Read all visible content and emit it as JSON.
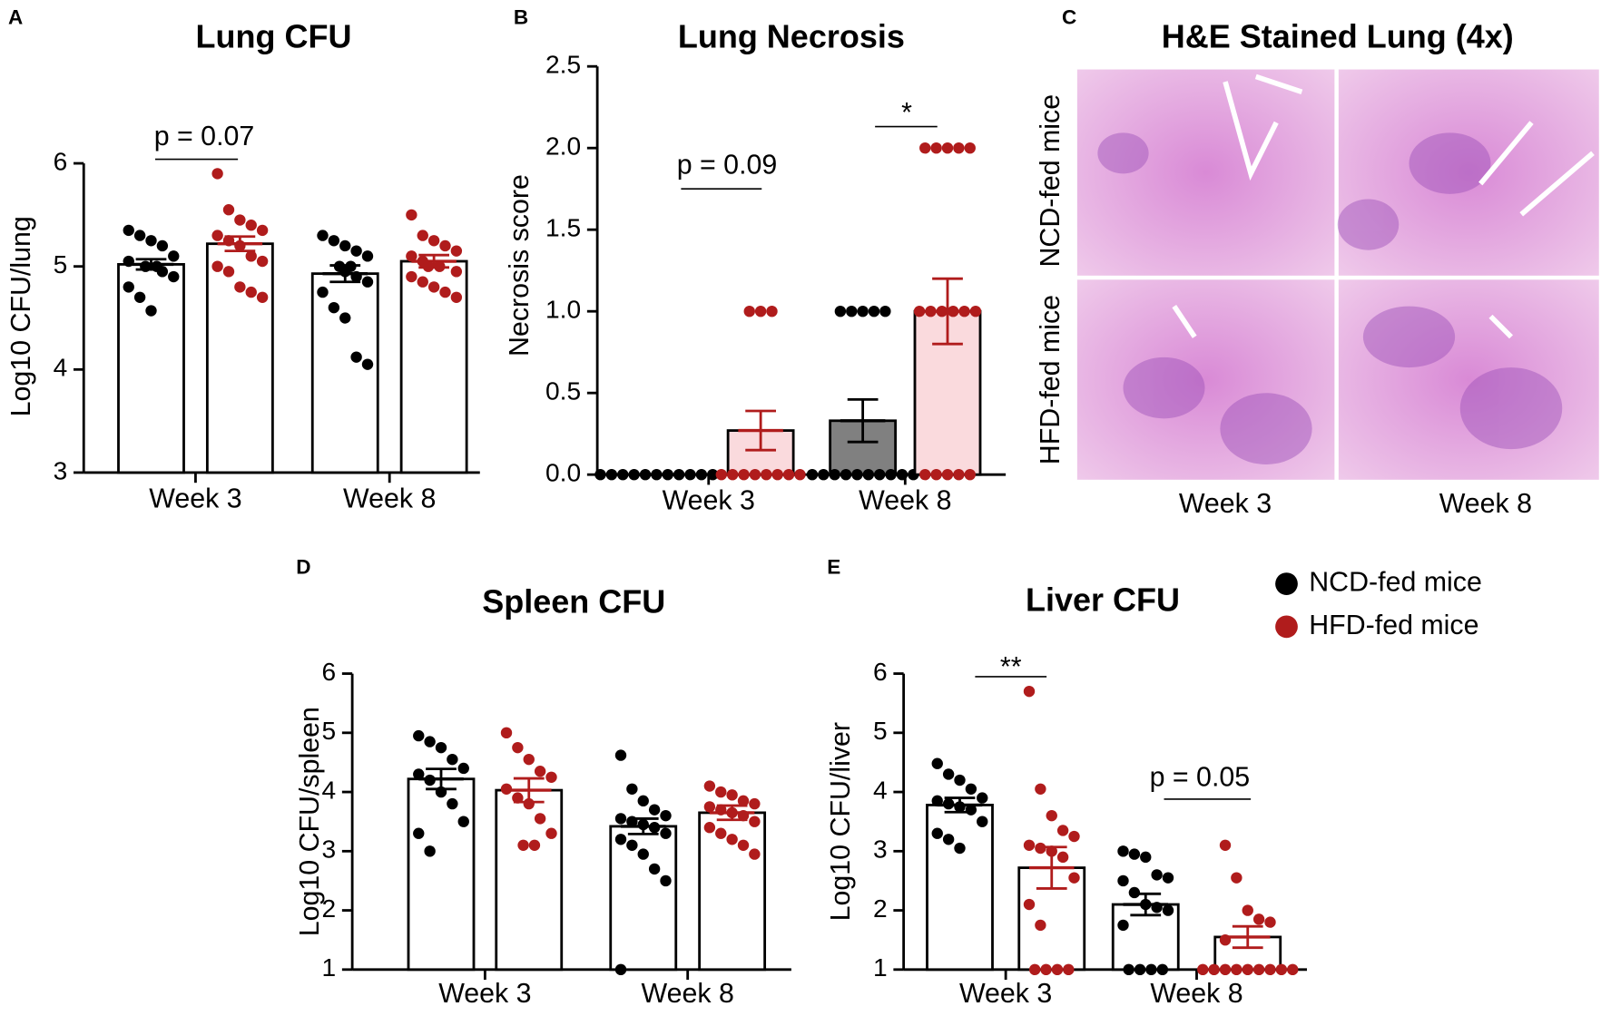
{
  "chart_data": [
    {
      "panel": "A",
      "type": "bar",
      "title": "Lung CFU",
      "y_label": "Log10 CFU/lung",
      "categories": [
        "Week 3",
        "Week 8"
      ],
      "ylim": [
        3,
        6
      ],
      "yticks": [
        3,
        4,
        5,
        6
      ],
      "series": [
        {
          "name": "NCD-fed mice",
          "color": "#000000",
          "bar_fill": "#ffffff",
          "values": [
            5.02,
            4.93
          ],
          "errors": [
            0.05,
            0.08
          ],
          "points": [
            [
              5.35,
              5.3,
              5.25,
              5.2,
              5.1,
              5.05,
              5.0,
              5.0,
              4.95,
              4.9,
              4.8,
              4.7,
              4.57
            ],
            [
              5.3,
              5.25,
              5.2,
              5.15,
              5.1,
              5.0,
              5.0,
              4.95,
              4.9,
              4.85,
              4.75,
              4.6,
              4.5,
              4.12,
              4.05
            ]
          ]
        },
        {
          "name": "HFD-fed mice",
          "color": "#b01c1c",
          "bar_fill": "#ffffff",
          "values": [
            5.22,
            5.05
          ],
          "errors": [
            0.07,
            0.06
          ],
          "points": [
            [
              5.9,
              5.55,
              5.45,
              5.4,
              5.35,
              5.3,
              5.25,
              5.2,
              5.1,
              5.05,
              5.0,
              4.95,
              4.8,
              4.75,
              4.7
            ],
            [
              5.5,
              5.3,
              5.25,
              5.2,
              5.15,
              5.1,
              5.05,
              5.0,
              5.0,
              4.95,
              4.9,
              4.85,
              4.8,
              4.75,
              4.7
            ]
          ]
        }
      ],
      "annotations": [
        "p = 0.07"
      ]
    },
    {
      "panel": "B",
      "type": "bar",
      "title": "Lung Necrosis",
      "y_label": "Necrosis score",
      "categories": [
        "Week 3",
        "Week 8"
      ],
      "ylim": [
        0,
        2.5
      ],
      "yticks": [
        {
          "value": 0,
          "label": "0.0"
        },
        {
          "value": 0.5,
          "label": "0.5"
        },
        {
          "value": 1,
          "label": "1.0"
        },
        {
          "value": 1.5,
          "label": "1.5"
        },
        {
          "value": 2,
          "label": "2.0"
        },
        {
          "value": 2.5,
          "label": "2.5"
        }
      ],
      "series": [
        {
          "name": "NCD-fed mice",
          "color": "#000000",
          "bar_fill": "#808080",
          "values": [
            0,
            0.33
          ],
          "errors": [
            0,
            0.13
          ],
          "points": [
            [
              0,
              0,
              0,
              0,
              0,
              0,
              0,
              0,
              0,
              0,
              0
            ],
            [
              1,
              1,
              1,
              1,
              1,
              0,
              0,
              0,
              0,
              0,
              0,
              0,
              0,
              0,
              0
            ]
          ]
        },
        {
          "name": "HFD-fed mice",
          "color": "#b01c1c",
          "bar_fill": "#fadadd",
          "values": [
            0.27,
            1.0
          ],
          "errors": [
            0.12,
            0.2
          ],
          "points": [
            [
              1,
              1,
              1,
              0,
              0,
              0,
              0,
              0,
              0,
              0,
              0
            ],
            [
              2,
              2,
              2,
              2,
              2,
              1,
              1,
              1,
              1,
              1,
              1,
              0,
              0,
              0,
              0,
              0
            ]
          ]
        }
      ],
      "annotations": [
        "p = 0.09",
        "*"
      ]
    },
    {
      "panel": "D",
      "type": "bar",
      "title": "Spleen CFU",
      "y_label": "Log10 CFU/spleen",
      "categories": [
        "Week 3",
        "Week 8"
      ],
      "ylim": [
        1,
        6
      ],
      "yticks": [
        1,
        2,
        3,
        4,
        5,
        6
      ],
      "series": [
        {
          "name": "NCD-fed mice",
          "color": "#000000",
          "bar_fill": "#ffffff",
          "values": [
            4.22,
            3.42
          ],
          "errors": [
            0.17,
            0.13
          ],
          "points": [
            [
              4.95,
              4.85,
              4.75,
              4.55,
              4.4,
              4.3,
              4.2,
              4.0,
              3.8,
              3.5,
              3.3,
              3.0
            ],
            [
              4.62,
              4.05,
              3.85,
              3.7,
              3.6,
              3.55,
              3.5,
              3.45,
              3.4,
              3.3,
              3.2,
              3.1,
              2.95,
              2.7,
              2.5,
              1.0
            ]
          ]
        },
        {
          "name": "HFD-fed mice",
          "color": "#b01c1c",
          "bar_fill": "#ffffff",
          "values": [
            4.03,
            3.65
          ],
          "errors": [
            0.2,
            0.12
          ],
          "points": [
            [
              5.0,
              4.75,
              4.55,
              4.35,
              4.25,
              4.05,
              3.9,
              3.8,
              3.55,
              3.3,
              3.1,
              3.1
            ],
            [
              4.1,
              4.0,
              3.95,
              3.85,
              3.8,
              3.75,
              3.7,
              3.65,
              3.6,
              3.5,
              3.4,
              3.3,
              3.2,
              3.1,
              2.95
            ]
          ]
        }
      ],
      "annotations": []
    },
    {
      "panel": "E",
      "type": "bar",
      "title": "Liver CFU",
      "y_label": "Log10 CFU/liver",
      "categories": [
        "Week 3",
        "Week 8"
      ],
      "ylim": [
        1,
        6
      ],
      "yticks": [
        1,
        2,
        3,
        4,
        5,
        6
      ],
      "series": [
        {
          "name": "NCD-fed mice",
          "color": "#000000",
          "bar_fill": "#ffffff",
          "values": [
            3.78,
            2.1
          ],
          "errors": [
            0.12,
            0.18
          ],
          "points": [
            [
              4.48,
              4.3,
              4.2,
              4.05,
              3.9,
              3.85,
              3.8,
              3.75,
              3.7,
              3.5,
              3.3,
              3.2,
              3.05
            ],
            [
              3.0,
              2.95,
              2.9,
              2.6,
              2.55,
              2.5,
              2.3,
              2.1,
              2.05,
              2.0,
              1.75,
              1.0,
              1.0,
              1.0,
              1.0
            ]
          ]
        },
        {
          "name": "HFD-fed mice",
          "color": "#b01c1c",
          "bar_fill": "#ffffff",
          "values": [
            2.72,
            1.55
          ],
          "errors": [
            0.35,
            0.18
          ],
          "points": [
            [
              5.7,
              4.05,
              3.6,
              3.35,
              3.25,
              3.1,
              3.05,
              3.0,
              2.9,
              2.55,
              2.1,
              1.75,
              1.0,
              1.0,
              1.0,
              1.0
            ],
            [
              3.1,
              2.55,
              2.0,
              1.85,
              1.8,
              1.5,
              1.0,
              1.0,
              1.0,
              1.0,
              1.0,
              1.0,
              1.0,
              1.0,
              1.0
            ]
          ]
        }
      ],
      "annotations": [
        "**",
        "p = 0.05"
      ]
    }
  ],
  "histology": {
    "panel": "C",
    "title": "H&E Stained Lung (4x)",
    "rows": [
      "NCD-fed mice",
      "HFD-fed mice"
    ],
    "columns": [
      "Week 3",
      "Week 8"
    ]
  }
}
